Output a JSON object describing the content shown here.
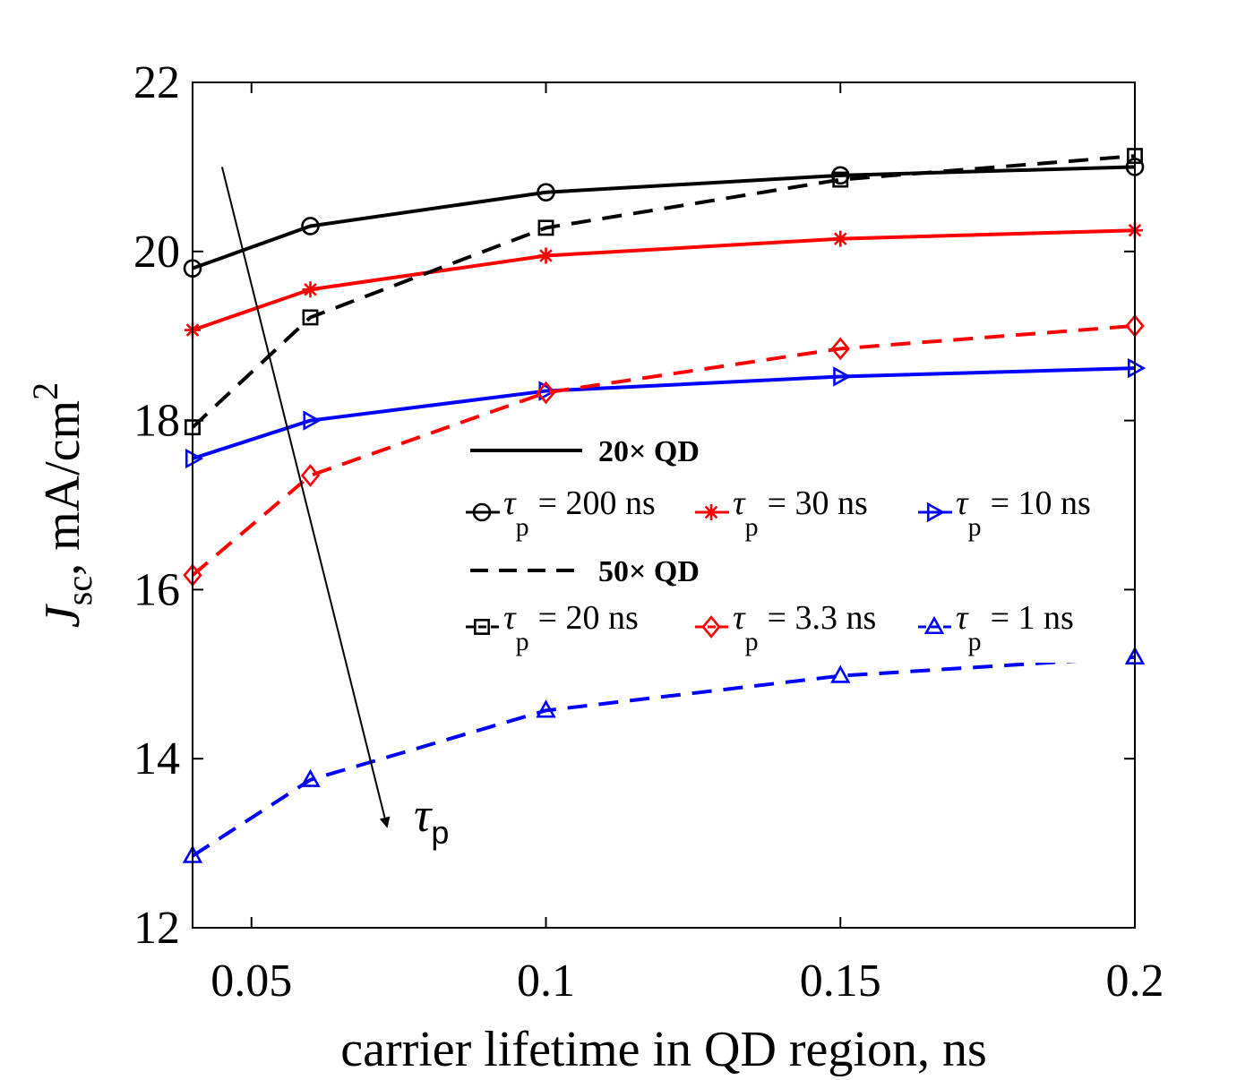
{
  "chart_data": {
    "type": "line",
    "xlabel": "carrier lifetime in QD region, ns",
    "ylabel": {
      "symbol": "J",
      "subscript": "sc",
      "rest": ", mA/cm",
      "superscript": "2"
    },
    "xlim": [
      0.04,
      0.2
    ],
    "ylim": [
      12,
      22
    ],
    "xticks": [
      0.05,
      0.1,
      0.15,
      0.2
    ],
    "xtick_labels": [
      "0.05",
      "0.1",
      "0.15",
      "0.2"
    ],
    "yticks": [
      12,
      14,
      16,
      18,
      20,
      22
    ],
    "ytick_labels": [
      "12",
      "14",
      "16",
      "18",
      "20",
      "22"
    ],
    "x": [
      0.04,
      0.06,
      0.1,
      0.15,
      0.2
    ],
    "series": [
      {
        "id": "s200",
        "group": "20× QD",
        "tau_label": "= 200 ns",
        "color": "#000000",
        "dash": "solid",
        "marker": "circle",
        "values": [
          19.8,
          20.3,
          20.7,
          20.9,
          21.0
        ]
      },
      {
        "id": "s30",
        "group": "20× QD",
        "tau_label": "= 30 ns",
        "color": "#ff0000",
        "dash": "solid",
        "marker": "star",
        "values": [
          19.07,
          19.55,
          19.95,
          20.15,
          20.25
        ]
      },
      {
        "id": "s10",
        "group": "20× QD",
        "tau_label": "= 10 ns",
        "color": "#0000ff",
        "dash": "solid",
        "marker": "triangle-right",
        "values": [
          17.55,
          18.0,
          18.35,
          18.52,
          18.62
        ]
      },
      {
        "id": "s20",
        "group": "50× QD",
        "tau_label": "= 20 ns",
        "color": "#000000",
        "dash": "dashed",
        "marker": "square",
        "values": [
          17.92,
          19.22,
          20.28,
          20.85,
          21.13
        ]
      },
      {
        "id": "s3_3",
        "group": "50× QD",
        "tau_label": "= 3.3 ns",
        "color": "#ff0000",
        "dash": "dashed",
        "marker": "diamond",
        "values": [
          16.17,
          17.35,
          18.33,
          18.85,
          19.12
        ]
      },
      {
        "id": "s1",
        "group": "50× QD",
        "tau_label": "= 1 ns",
        "color": "#0000ff",
        "dash": "dashed",
        "marker": "triangle-up",
        "values": [
          12.85,
          13.75,
          14.57,
          14.98,
          15.2
        ]
      }
    ],
    "legend": {
      "placement": "center-right",
      "group_solid": "20× QD",
      "group_dashed": "50× QD",
      "tau_symbol": "τ",
      "tau_subscript": "p"
    },
    "annotation": {
      "text": "τ",
      "subscript": "p",
      "arrow_from": [
        0.045,
        21.0
      ],
      "arrow_to": [
        0.073,
        13.2
      ]
    }
  }
}
